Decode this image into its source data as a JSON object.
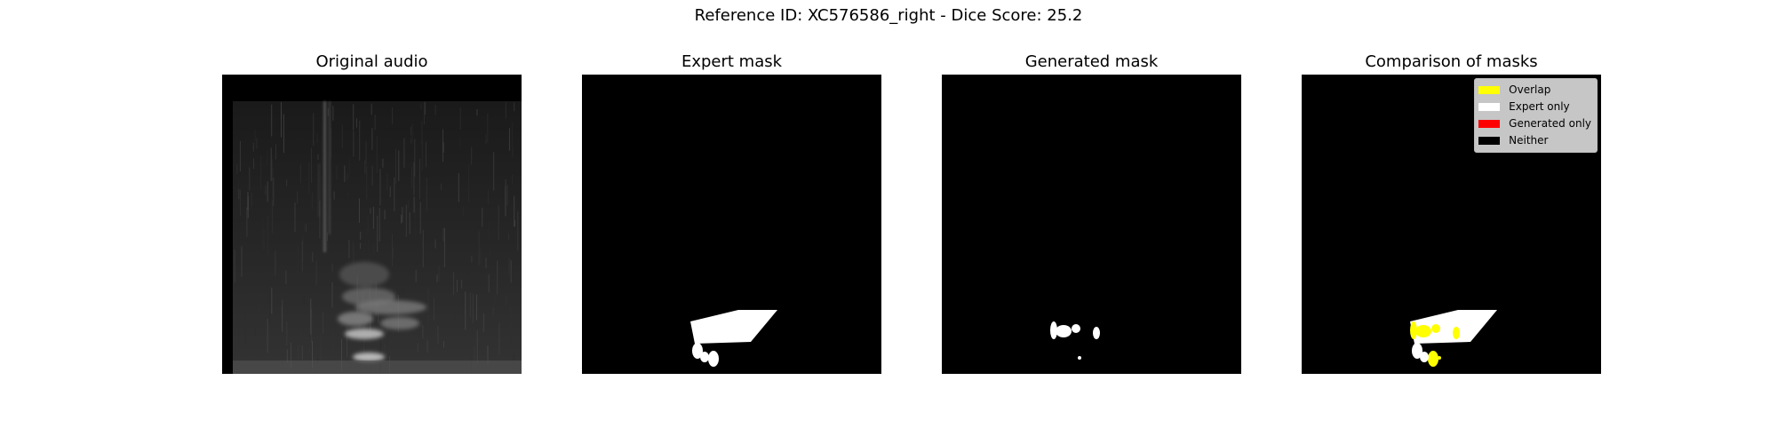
{
  "figure": {
    "suptitle": "Reference ID: XC576586_right - Dice Score: 25.2"
  },
  "panels": [
    {
      "title": "Original audio",
      "image": "spectrogram"
    },
    {
      "title": "Expert mask",
      "image": "expert-mask"
    },
    {
      "title": "Generated mask",
      "image": "generated-mask"
    },
    {
      "title": "Comparison of masks",
      "image": "comparison-mask"
    }
  ],
  "legend": {
    "items": [
      {
        "label": "Overlap",
        "color": "#ffff00"
      },
      {
        "label": "Expert only",
        "color": "#ffffff"
      },
      {
        "label": "Generated only",
        "color": "#ff0000"
      },
      {
        "label": "Neither",
        "color": "#000000"
      }
    ]
  }
}
